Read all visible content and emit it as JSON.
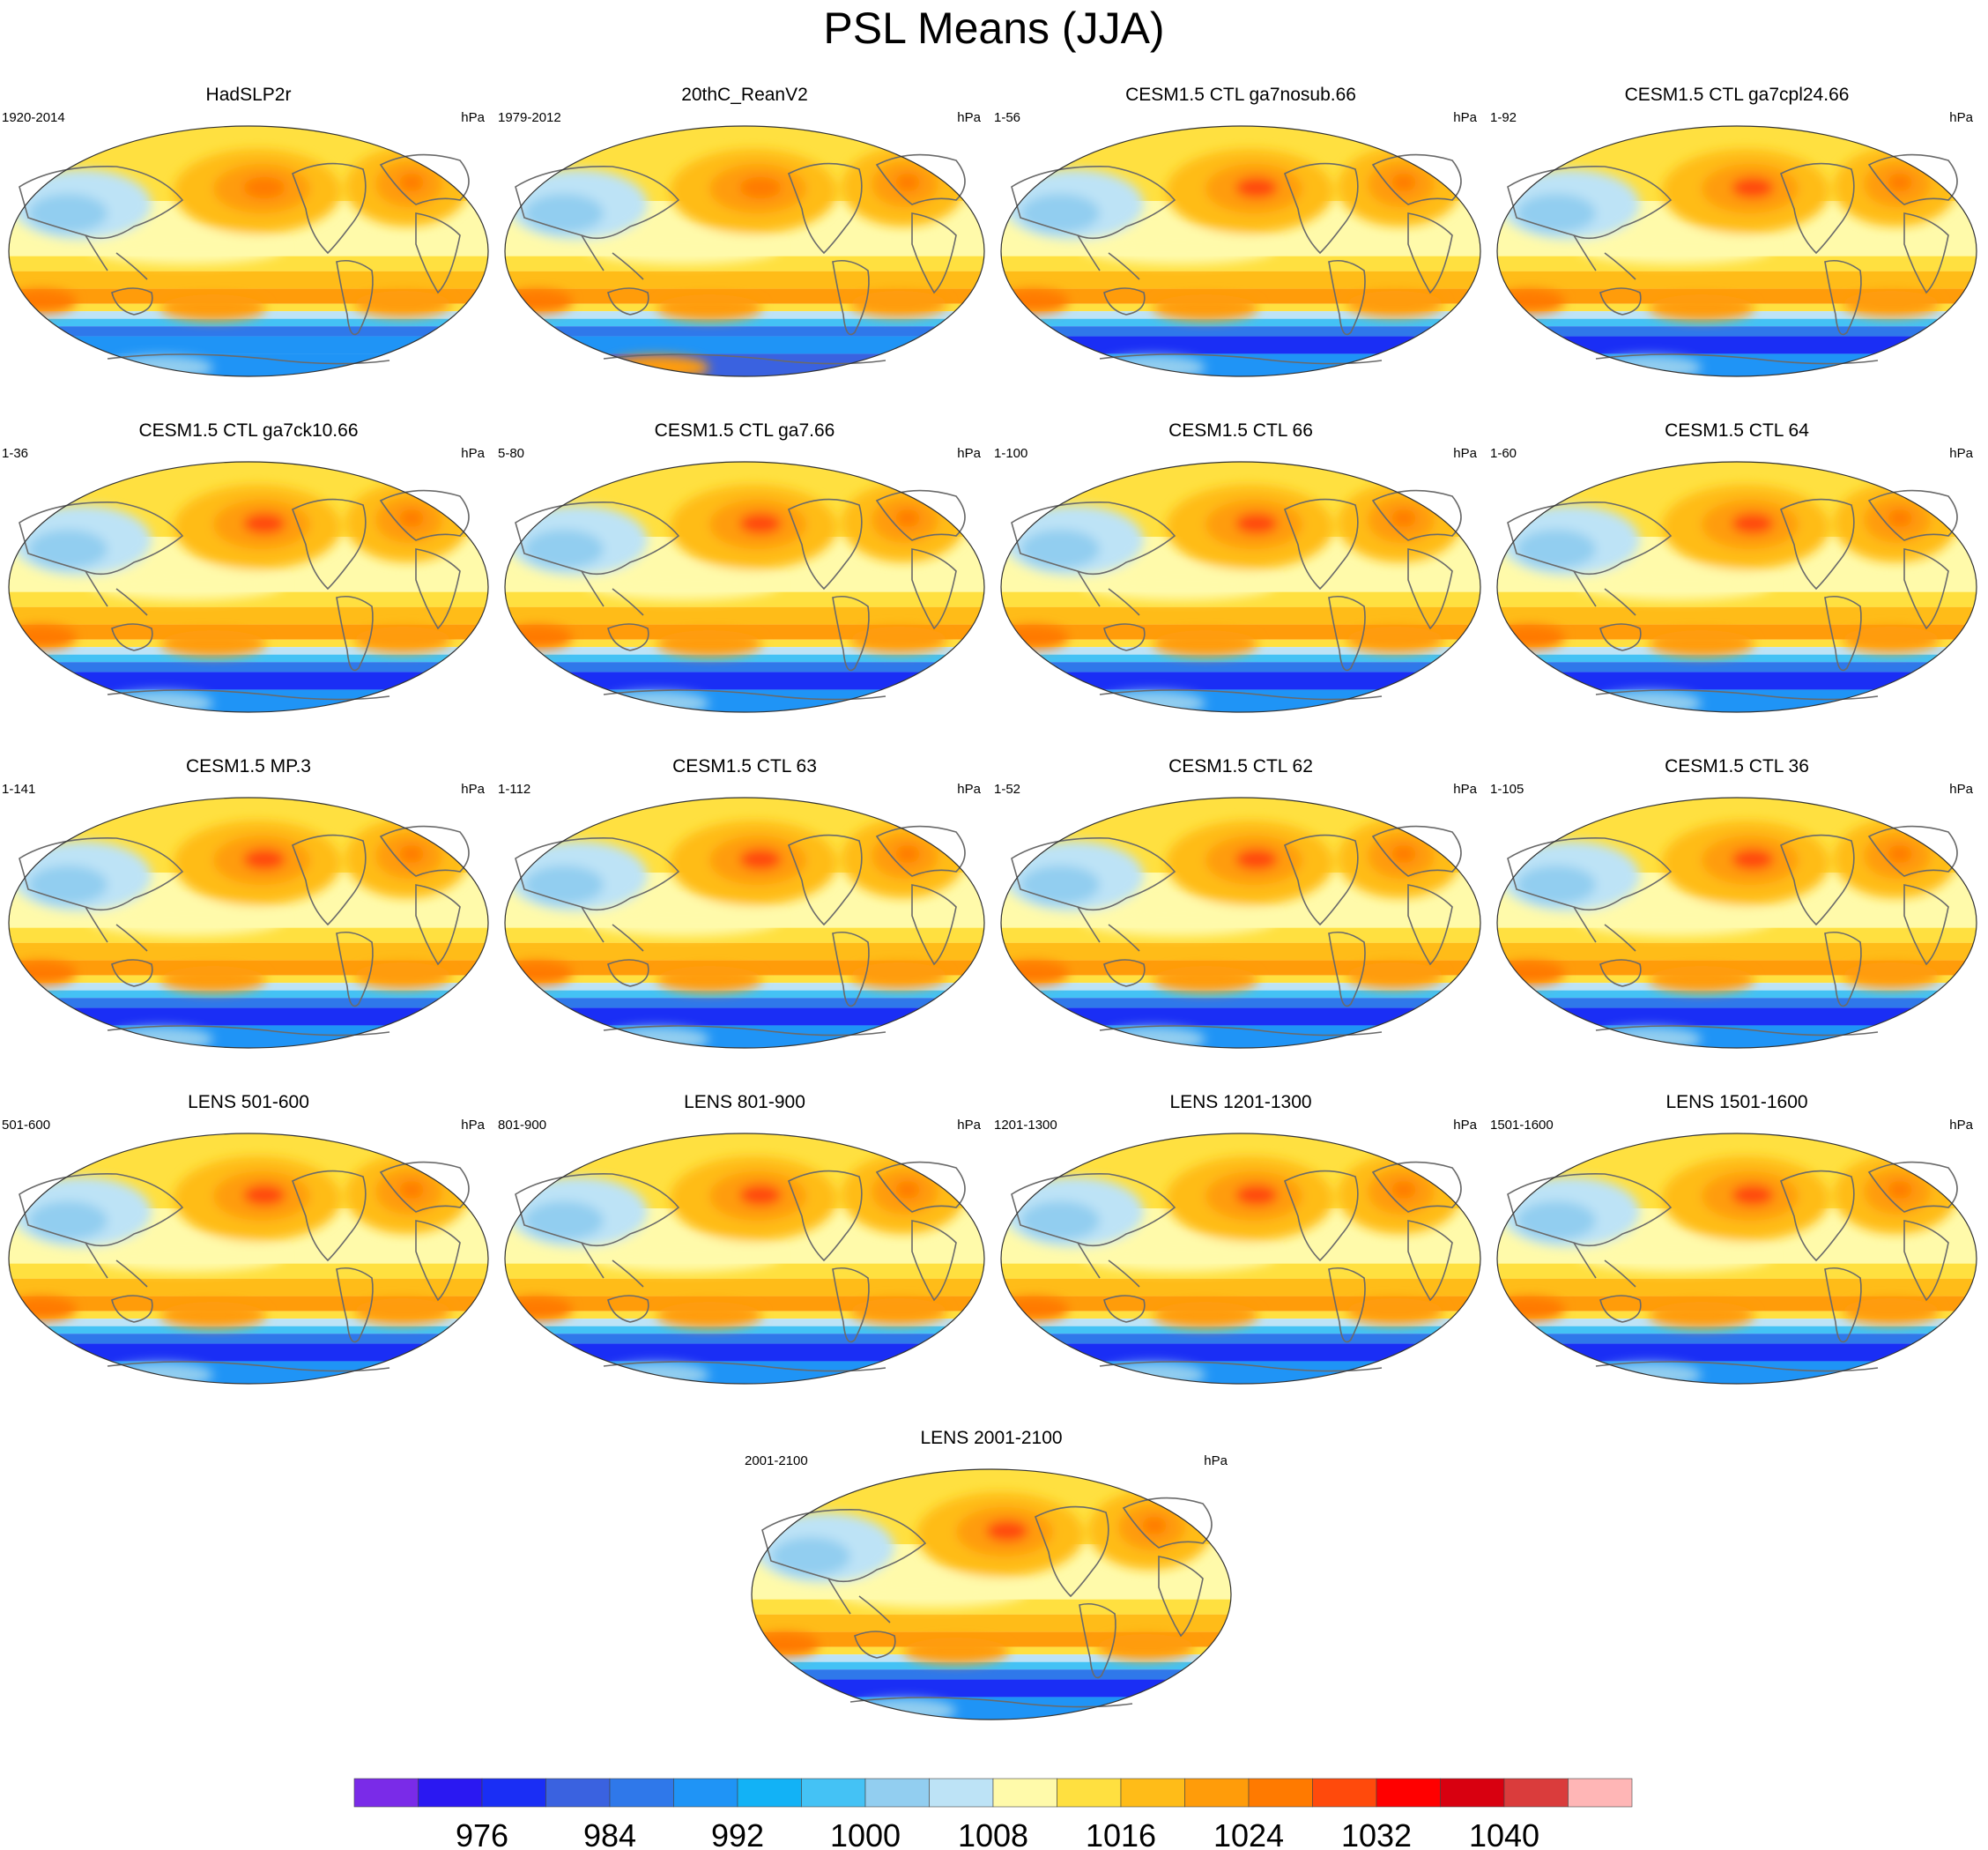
{
  "title": "PSL Means (JJA)",
  "chart_data": {
    "type": "heatmap",
    "title": "PSL Means (JJA)",
    "variable": "PSL",
    "units": "hPa",
    "panels": [
      {
        "name": "HadSLP2r",
        "years": "1920-2014",
        "units": "hPa"
      },
      {
        "name": "20thC_ReanV2",
        "years": "1979-2012",
        "units": "hPa"
      },
      {
        "name": "CESM1.5 CTL ga7nosub.66",
        "years": "1-56",
        "units": "hPa"
      },
      {
        "name": "CESM1.5 CTL ga7cpl24.66",
        "years": "1-92",
        "units": "hPa"
      },
      {
        "name": "CESM1.5 CTL ga7ck10.66",
        "years": "1-36",
        "units": "hPa"
      },
      {
        "name": "CESM1.5 CTL ga7.66",
        "years": "5-80",
        "units": "hPa"
      },
      {
        "name": "CESM1.5 CTL 66",
        "years": "1-100",
        "units": "hPa"
      },
      {
        "name": "CESM1.5 CTL 64",
        "years": "1-60",
        "units": "hPa"
      },
      {
        "name": "CESM1.5 MP.3",
        "years": "1-141",
        "units": "hPa"
      },
      {
        "name": "CESM1.5 CTL 63",
        "years": "1-112",
        "units": "hPa"
      },
      {
        "name": "CESM1.5 CTL 62",
        "years": "1-52",
        "units": "hPa"
      },
      {
        "name": "CESM1.5 CTL 36",
        "years": "1-105",
        "units": "hPa"
      },
      {
        "name": "LENS 501-600",
        "years": "501-600",
        "units": "hPa"
      },
      {
        "name": "LENS 801-900",
        "years": "801-900",
        "units": "hPa"
      },
      {
        "name": "LENS 1201-1300",
        "years": "1201-1300",
        "units": "hPa"
      },
      {
        "name": "LENS 1501-1600",
        "years": "1501-1600",
        "units": "hPa"
      },
      {
        "name": "LENS 2001-2100",
        "years": "2001-2100",
        "units": "hPa"
      }
    ],
    "colorbar": {
      "colors": [
        "#7a2be8",
        "#2a18f2",
        "#1a2ef5",
        "#3a62e0",
        "#2f78ea",
        "#1f94f6",
        "#12b2f6",
        "#44c2f5",
        "#92cef0",
        "#bde3f6",
        "#fffaaa",
        "#ffe040",
        "#ffbc18",
        "#ff9c0a",
        "#ff7a00",
        "#ff4a0c",
        "#ff0000",
        "#d80010",
        "#da3c3c",
        "#ffb6b6"
      ],
      "tick_labels": [
        "976",
        "984",
        "992",
        "1000",
        "1008",
        "1016",
        "1024",
        "1032",
        "1040"
      ]
    }
  }
}
